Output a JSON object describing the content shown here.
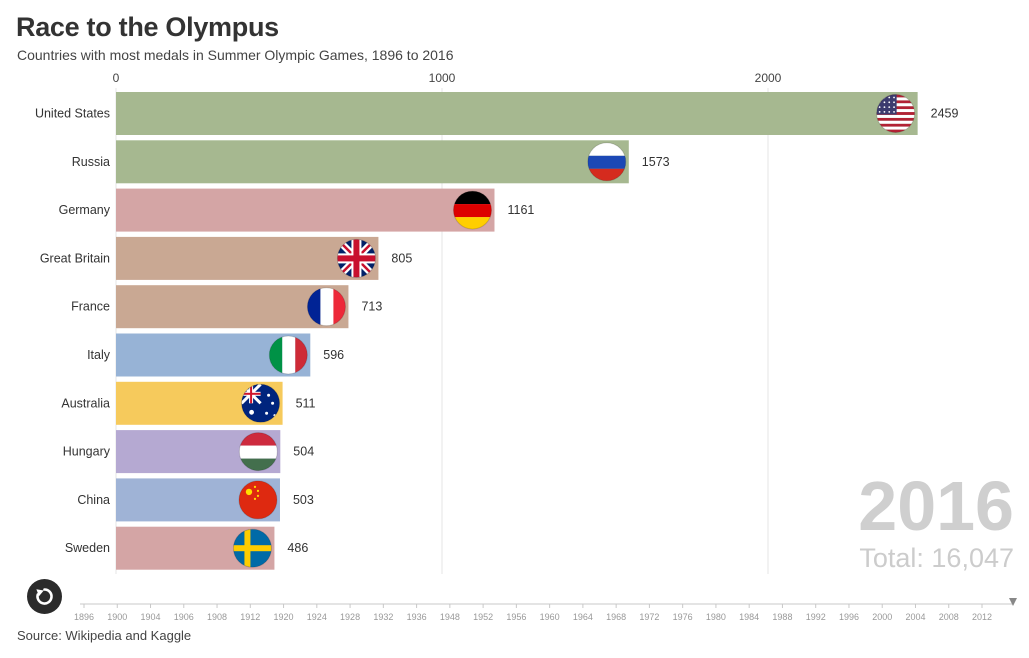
{
  "title": "Race to the Olympus",
  "subtitle": "Countries with most medals in Summer Olympic Games, 1896 to 2016",
  "source": "Source: Wikipedia and Kaggle",
  "current_year": "2016",
  "total_label": "Total: 16,047",
  "icons": {
    "replay": "replay-icon",
    "slider_handle": "slider-handle-icon"
  },
  "chart_data": {
    "type": "bar",
    "orientation": "horizontal",
    "categories": [
      "United States",
      "Russia",
      "Germany",
      "Great Britain",
      "France",
      "Italy",
      "Australia",
      "Hungary",
      "China",
      "Sweden"
    ],
    "values": [
      2459,
      1573,
      1161,
      805,
      713,
      596,
      511,
      504,
      503,
      486
    ],
    "colors": [
      "#a6b890",
      "#a6b890",
      "#d4a5a5",
      "#c9a893",
      "#c9a893",
      "#97b3d6",
      "#f6ca5c",
      "#b5a9d2",
      "#9fb3d6",
      "#d4a5a5"
    ],
    "flags": [
      "usa-flag-icon",
      "russia-flag-icon",
      "germany-flag-icon",
      "great-britain-flag-icon",
      "france-flag-icon",
      "italy-flag-icon",
      "australia-flag-icon",
      "hungary-flag-icon",
      "china-flag-icon",
      "sweden-flag-icon"
    ],
    "xlim": [
      0,
      2600
    ],
    "x_ticks": [
      0,
      1000,
      2000
    ],
    "grid": true,
    "timeline_years": [
      "1896",
      "1900",
      "1904",
      "1906",
      "1908",
      "1912",
      "1920",
      "1924",
      "1928",
      "1932",
      "1936",
      "1948",
      "1952",
      "1956",
      "1960",
      "1964",
      "1968",
      "1972",
      "1976",
      "1980",
      "1984",
      "1988",
      "1992",
      "1996",
      "2000",
      "2004",
      "2008",
      "2012"
    ],
    "timeline_selected": "2016"
  }
}
